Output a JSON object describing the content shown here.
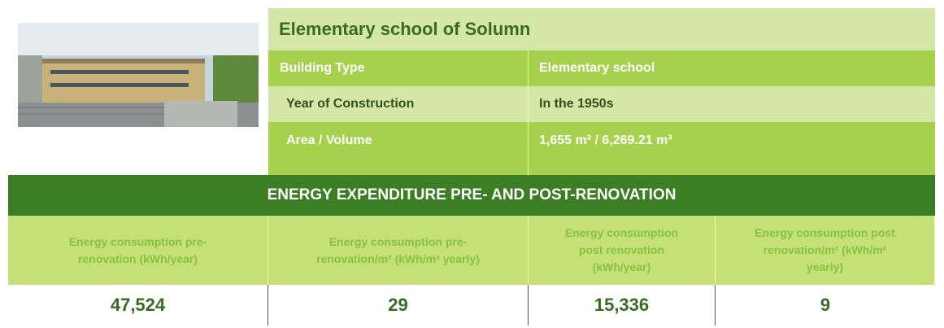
{
  "title": "Elementary school of Solumn",
  "details": [
    {
      "label": "Building Type",
      "value": "Elementary school"
    },
    {
      "label": "Year of Construction",
      "value": "In the 1950s"
    },
    {
      "label": "Area / Volume",
      "value": "1,655 m² / 6,269.21 m³"
    }
  ],
  "section_title": "ENERGY EXPENDITURE PRE- AND POST-RENOVATION",
  "table": {
    "headers": [
      "Energy consumption pre-renovation   (kWh/year)",
      "Energy consumption pre-renovation/m² (kWh/m² yearly)",
      "Energy consumption post renovation (kWh/year)",
      "Energy consumption post renovation/m² (kWh/m² yearly)"
    ],
    "values": [
      "47,524",
      "29",
      "15,336",
      "9"
    ]
  }
}
